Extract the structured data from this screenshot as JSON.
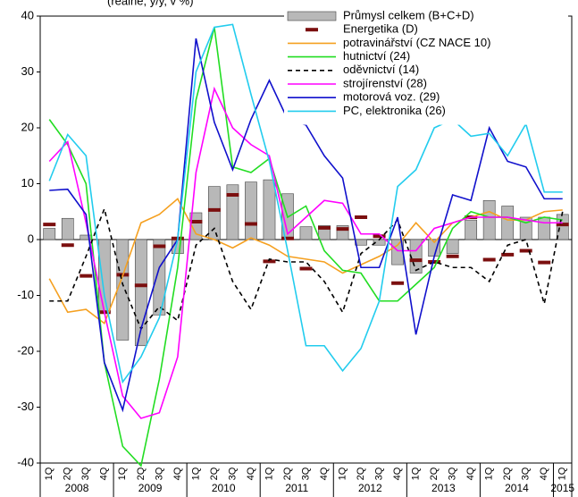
{
  "chart_data": {
    "type": "combo",
    "title": "(reálně, y/y, v %)",
    "categories": [
      "1Q",
      "2Q",
      "3Q",
      "4Q",
      "1Q",
      "2Q",
      "3Q",
      "4Q",
      "1Q",
      "2Q",
      "3Q",
      "4Q",
      "1Q",
      "2Q",
      "3Q",
      "4Q",
      "1Q",
      "2Q",
      "3Q",
      "4Q",
      "1Q",
      "2Q",
      "3Q",
      "4Q",
      "1Q",
      "2Q",
      "3Q",
      "4Q",
      "1Q"
    ],
    "year_groups": [
      {
        "label": "2008",
        "span": 4
      },
      {
        "label": "2009",
        "span": 4
      },
      {
        "label": "2010",
        "span": 4
      },
      {
        "label": "2011",
        "span": 4
      },
      {
        "label": "2012",
        "span": 4
      },
      {
        "label": "2013",
        "span": 4
      },
      {
        "label": "2014",
        "span": 4
      },
      {
        "label": "2015",
        "span": 1
      }
    ],
    "ylim": [
      -40,
      40
    ],
    "yticks": [
      -40,
      -30,
      -20,
      -10,
      0,
      10,
      20,
      30,
      40
    ],
    "series": [
      {
        "name": "Průmysl celkem (B+C+D)",
        "style": "bar",
        "color": "#b8b8b8",
        "values": [
          2,
          3.8,
          0.8,
          -13,
          -18,
          -19,
          -13.5,
          -2.5,
          4.8,
          9.5,
          9.8,
          10.3,
          10.7,
          8.2,
          2.3,
          2.5,
          2.5,
          -1,
          -1,
          -4.5,
          -6,
          -3,
          -2.5,
          3.5,
          7,
          6,
          4,
          4,
          4.5
        ]
      },
      {
        "name": "Energetika (D)",
        "style": "marker",
        "color": "#7b0f0f",
        "values": [
          2.7,
          -1,
          -6.5,
          -13,
          -6.3,
          -8.2,
          -1.2,
          0.2,
          3.2,
          5.3,
          8,
          2.8,
          -3.9,
          0.2,
          -5.2,
          2.1,
          1.9,
          4,
          0.6,
          -7.8,
          -3.7,
          -4,
          -3,
          4,
          -3.6,
          -2.7,
          -2,
          -4.1,
          2.7
        ]
      },
      {
        "name": "potravinářství (CZ NACE 10)",
        "style": "line",
        "color": "#f5a020",
        "values": [
          -7,
          -13,
          -12.5,
          -15,
          -6.5,
          3,
          4.5,
          7.3,
          1,
          0,
          -1.5,
          0.3,
          -1,
          -3,
          -3.5,
          -4,
          -6,
          -4.5,
          -3,
          -1,
          3,
          -0.5,
          3,
          4,
          5,
          3.5,
          3.5,
          5,
          5.3
        ]
      },
      {
        "name": "hutnictví (24)",
        "style": "line",
        "color": "#22dd22",
        "values": [
          21.5,
          17,
          10,
          -22,
          -37,
          -40.5,
          -25,
          -5,
          25,
          38,
          13,
          12,
          14.5,
          4,
          6,
          -2,
          -5.5,
          -6,
          -11,
          -11,
          -8,
          -5,
          2,
          5,
          4,
          4,
          3,
          4,
          3.5
        ]
      },
      {
        "name": "oděvnictví (14)",
        "style": "dashed",
        "color": "#000000",
        "values": [
          -11,
          -11,
          -3,
          5.5,
          -8,
          -16,
          -12,
          -14.5,
          -1,
          2,
          -7.5,
          -12.5,
          -3.5,
          -4,
          -4,
          -7.5,
          -13,
          -2.5,
          0,
          3.5,
          -5.5,
          -4,
          -5,
          -5,
          -7.5,
          -1,
          0,
          -11.5,
          5
        ]
      },
      {
        "name": "strojírenství (28)",
        "style": "line",
        "color": "#ff00ff",
        "values": [
          14,
          17.5,
          3,
          -13,
          -28,
          -32,
          -31,
          -21,
          12,
          27,
          20,
          17,
          15,
          1,
          4,
          7,
          6.5,
          1,
          1,
          -2,
          -2,
          2,
          3,
          4,
          4,
          4,
          3.5,
          3,
          3
        ]
      },
      {
        "name": "motorová voz. (29)",
        "style": "line",
        "color": "#1010cc",
        "values": [
          8.8,
          9,
          4.5,
          -22,
          -30.5,
          -16,
          -5,
          0,
          36,
          21,
          12.5,
          21.5,
          28.5,
          21.5,
          20.5,
          15,
          11,
          -5,
          -5,
          4,
          -17,
          -3,
          8,
          7,
          20,
          14,
          13,
          7.3,
          7.3
        ]
      },
      {
        "name": "PC, elektronika (26)",
        "style": "line",
        "color": "#22ccee",
        "values": [
          10.5,
          18.8,
          15,
          -10,
          -25.5,
          -21,
          -14,
          0,
          30,
          38,
          38.5,
          26,
          14,
          -2,
          -19,
          -19,
          -23.5,
          -19.5,
          -11,
          9.5,
          12.5,
          20,
          21.5,
          18.5,
          19,
          15,
          20.7,
          8.5,
          8.5
        ]
      }
    ]
  }
}
